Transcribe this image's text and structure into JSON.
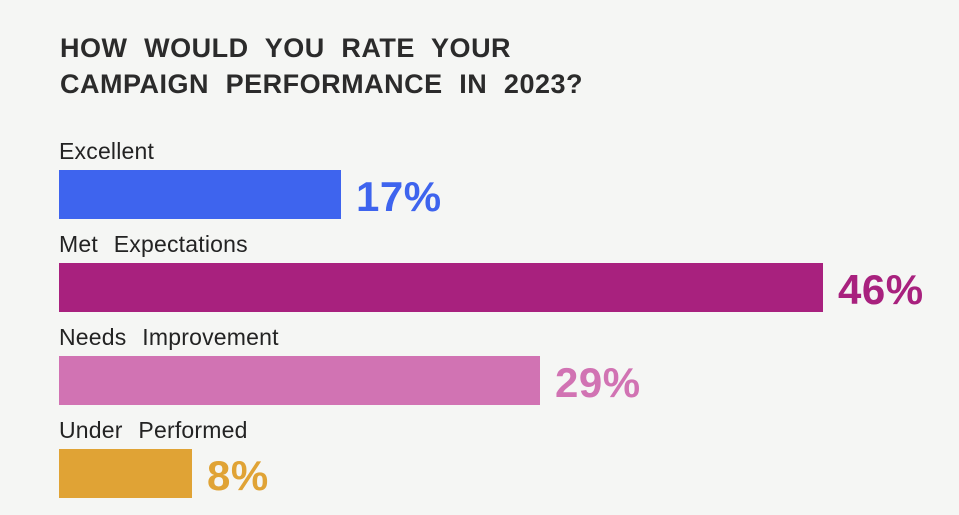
{
  "chart_data": {
    "type": "bar",
    "orientation": "horizontal",
    "title": "HOW WOULD YOU RATE YOUR CAMPAIGN PERFORMANCE IN 2023?",
    "title_lines": [
      "HOW WOULD YOU RATE YOUR",
      "CAMPAIGN PERFORMANCE IN 2023?"
    ],
    "categories": [
      "Excellent",
      "Met Expectations",
      "Needs Improvement",
      "Under Performed"
    ],
    "values": [
      17,
      46,
      29,
      8
    ],
    "value_labels": [
      "17%",
      "46%",
      "29%",
      "8%"
    ],
    "colors": [
      "#3e64ee",
      "#a8217e",
      "#d173b3",
      "#e0a335"
    ],
    "xlabel": "",
    "ylabel": "",
    "xlim": [
      0,
      50
    ],
    "grid": false,
    "legend": false,
    "background_color": "#f5f6f4",
    "title_color": "#2b2b2b",
    "label_color": "#232323"
  }
}
